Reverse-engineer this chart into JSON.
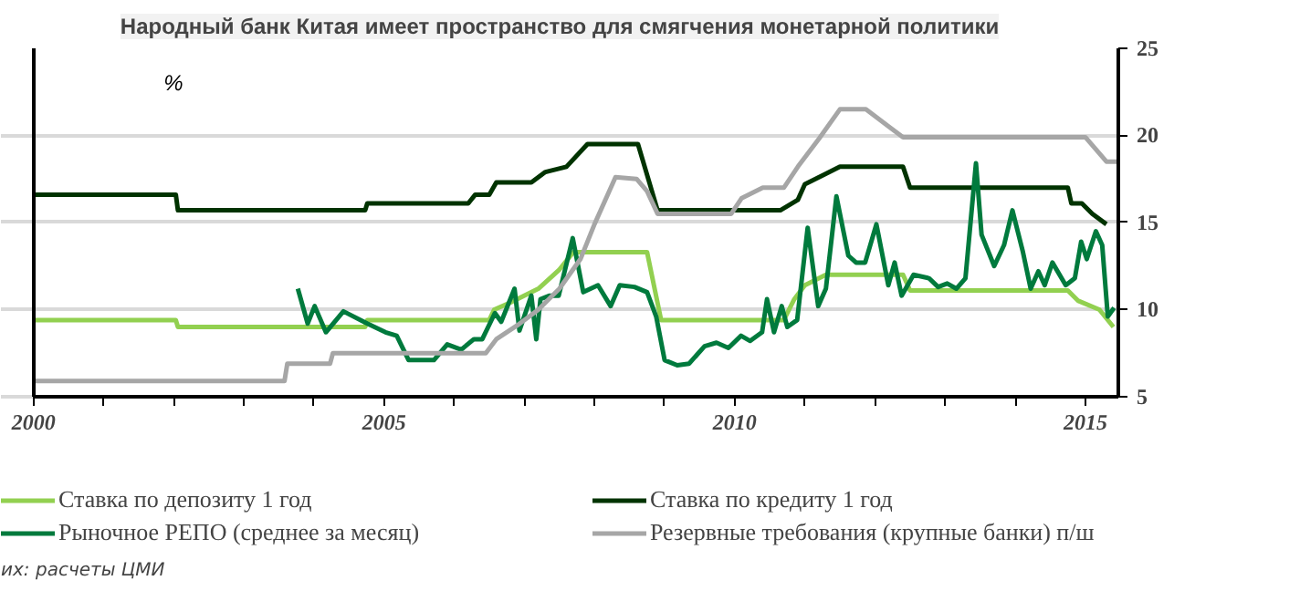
{
  "chart_data": {
    "type": "line",
    "title": "Народный банк Китая имеет пространство для смягчения монетарной политики",
    "ylabel": "%",
    "xlim": [
      2000,
      2015.47
    ],
    "xticks": [
      2000,
      {
        "value": 2001,
        "label": null
      },
      {
        "value": 2002,
        "label": null
      },
      {
        "value": 2003,
        "label": null
      },
      {
        "value": 2004,
        "label": null
      },
      2005,
      {
        "value": 2006,
        "label": null
      },
      {
        "value": 2007,
        "label": null
      },
      {
        "value": 2008,
        "label": null
      },
      {
        "value": 2009,
        "label": null
      },
      2010,
      {
        "value": 2011,
        "label": null
      },
      {
        "value": 2012,
        "label": null
      },
      {
        "value": 2013,
        "label": null
      },
      {
        "value": 2014,
        "label": null
      },
      2015
    ],
    "ylim": [
      5,
      25
    ],
    "yticks": [
      5,
      10,
      15,
      20,
      25
    ],
    "grid": "y",
    "legend": "bottom",
    "line_style": "solid",
    "annotations": [
      "их: расчеты ЦМИ"
    ],
    "series": [
      {
        "name": "Ставка по депозиту 1 год",
        "color": "#92d050",
        "x": [
          2000,
          2002.03,
          2002.06,
          2004.73,
          2004.76,
          2006.5,
          2006.57,
          2006.8,
          2007.2,
          2007.5,
          2007.7,
          2008.75,
          2008.95,
          2010.7,
          2010.85,
          2011.0,
          2011.3,
          2012.4,
          2012.5,
          2014.75,
          2014.9,
          2015.2,
          2015.4
        ],
        "values": [
          9.4,
          9.4,
          9.0,
          9.0,
          9.4,
          9.4,
          10.0,
          10.4,
          11.2,
          12.3,
          13.3,
          13.3,
          9.4,
          9.4,
          10.6,
          11.4,
          12.0,
          12.0,
          11.1,
          11.1,
          10.5,
          10.0,
          9.0
        ]
      },
      {
        "name": "Ставка по кредиту 1 год",
        "color": "#003300",
        "x": [
          2000,
          2002.03,
          2002.06,
          2004.73,
          2004.76,
          2006.2,
          2006.3,
          2006.5,
          2006.6,
          2007.1,
          2007.3,
          2007.6,
          2007.9,
          2008.62,
          2008.9,
          2010.65,
          2010.9,
          2011.0,
          2011.3,
          2011.5,
          2012.4,
          2012.5,
          2014.75,
          2014.8,
          2014.95,
          2015.1,
          2015.3
        ],
        "values": [
          16.6,
          16.6,
          15.7,
          15.7,
          16.1,
          16.1,
          16.6,
          16.6,
          17.3,
          17.3,
          17.9,
          18.2,
          19.5,
          19.5,
          15.7,
          15.7,
          16.3,
          17.2,
          17.8,
          18.2,
          18.2,
          17.0,
          17.0,
          16.1,
          16.1,
          15.5,
          14.9
        ]
      },
      {
        "name": "Рыночное РЕПО (среднее за месяц)",
        "color": "#007a3d",
        "x": [
          2003.77,
          2003.91,
          2004.01,
          2004.17,
          2004.42,
          2004.76,
          2005.02,
          2005.18,
          2005.35,
          2005.71,
          2005.9,
          2006.1,
          2006.28,
          2006.4,
          2006.58,
          2006.67,
          2006.86,
          2006.93,
          2007.1,
          2007.17,
          2007.23,
          2007.36,
          2007.49,
          2007.69,
          2007.84,
          2008.05,
          2008.23,
          2008.36,
          2008.57,
          2008.75,
          2008.88,
          2009.0,
          2009.18,
          2009.35,
          2009.57,
          2009.74,
          2009.91,
          2010.09,
          2010.22,
          2010.39,
          2010.46,
          2010.56,
          2010.67,
          2010.75,
          2010.89,
          2011.04,
          2011.19,
          2011.3,
          2011.45,
          2011.62,
          2011.73,
          2011.86,
          2012.02,
          2012.19,
          2012.28,
          2012.38,
          2012.55,
          2012.77,
          2012.9,
          2013.03,
          2013.16,
          2013.29,
          2013.44,
          2013.52,
          2013.7,
          2013.84,
          2013.96,
          2014.11,
          2014.22,
          2014.33,
          2014.42,
          2014.53,
          2014.72,
          2014.85,
          2014.94,
          2015.02,
          2015.15,
          2015.24,
          2015.32,
          2015.41
        ],
        "values": [
          11.2,
          9.2,
          10.2,
          8.7,
          9.9,
          9.2,
          8.7,
          8.5,
          7.1,
          7.1,
          8.0,
          7.7,
          8.3,
          8.3,
          9.8,
          9.3,
          11.2,
          8.8,
          10.8,
          8.3,
          10.6,
          10.8,
          10.8,
          14.1,
          11.0,
          11.4,
          10.2,
          11.4,
          11.3,
          11.0,
          9.6,
          7.1,
          6.8,
          6.9,
          7.9,
          8.1,
          7.8,
          8.5,
          8.2,
          8.7,
          10.6,
          8.7,
          10.2,
          9.0,
          9.4,
          14.7,
          10.2,
          11.2,
          16.5,
          13.1,
          12.7,
          12.7,
          14.9,
          11.4,
          12.7,
          10.8,
          12.0,
          11.8,
          11.3,
          11.5,
          11.2,
          11.8,
          18.4,
          14.3,
          12.5,
          13.7,
          15.7,
          13.3,
          11.2,
          12.2,
          11.4,
          12.7,
          11.4,
          11.8,
          13.9,
          12.9,
          14.5,
          13.7,
          9.6,
          10.1
        ]
      },
      {
        "name": "Резервные требования (крупные банки) п/ш",
        "color": "#a6a6a6",
        "x": [
          2000,
          2003.58,
          2003.62,
          2004.23,
          2004.27,
          2006.45,
          2006.6,
          2006.9,
          2007.2,
          2007.5,
          2007.8,
          2008.0,
          2008.3,
          2008.6,
          2008.75,
          2008.9,
          2009.95,
          2010.1,
          2010.4,
          2010.7,
          2010.9,
          2011.2,
          2011.5,
          2011.87,
          2012.2,
          2012.4,
          2015.0,
          2015.3,
          2015.47
        ],
        "values": [
          5.9,
          5.9,
          6.9,
          6.9,
          7.5,
          7.5,
          8.3,
          9.1,
          10.0,
          11.2,
          12.9,
          14.9,
          17.6,
          17.5,
          16.8,
          15.5,
          15.5,
          16.4,
          17.0,
          17.0,
          18.2,
          19.8,
          21.5,
          21.5,
          20.5,
          19.9,
          19.9,
          18.5,
          18.5
        ]
      }
    ]
  }
}
